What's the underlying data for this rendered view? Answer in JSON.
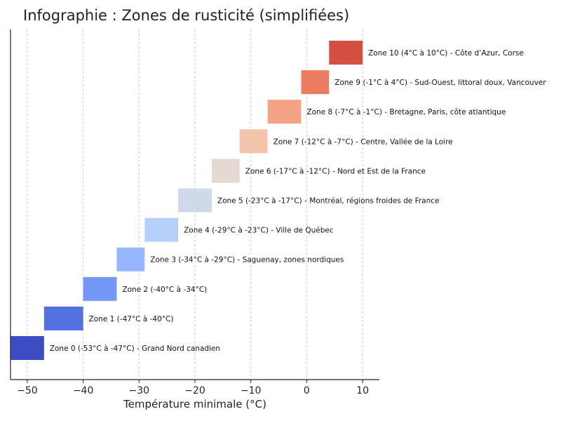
{
  "chart_data": {
    "type": "bar",
    "orientation": "horizontal-range",
    "title": "Infographie : Zones de rusticité (simplifiées)",
    "xlabel": "Température minimale (°C)",
    "ylabel": "",
    "xlim": [
      -53,
      13
    ],
    "xticks": [
      -50,
      -40,
      -30,
      -20,
      -10,
      0,
      10
    ],
    "xtick_labels": [
      "−50",
      "−40",
      "−30",
      "−20",
      "−10",
      "0",
      "10"
    ],
    "grid": "vertical dashed",
    "series": [
      {
        "label": "Zone 0 (-53°C à -47°C) - Grand Nord canadien",
        "start": -53,
        "end": -47,
        "color": "#3b4cc0"
      },
      {
        "label": "Zone 1 (-47°C à -40°C)",
        "start": -47,
        "end": -40,
        "color": "#5470de"
      },
      {
        "label": "Zone 2 (-40°C à -34°C)",
        "start": -40,
        "end": -34,
        "color": "#7597f6"
      },
      {
        "label": "Zone 3 (-34°C à -29°C) - Saguenay, zones nordiques",
        "start": -34,
        "end": -29,
        "color": "#96b7ff"
      },
      {
        "label": "Zone 4 (-29°C à -23°C) - Ville de Québec",
        "start": -29,
        "end": -23,
        "color": "#b7cff9"
      },
      {
        "label": "Zone 5 (-23°C à -17°C) - Montréal, régions froides de France",
        "start": -23,
        "end": -17,
        "color": "#d0d9e8"
      },
      {
        "label": "Zone 6 (-17°C à -12°C) - Nord et Est de la France",
        "start": -17,
        "end": -12,
        "color": "#e5d8d0"
      },
      {
        "label": "Zone 7 (-12°C à -7°C) - Centre, Vallée de la Loire",
        "start": -12,
        "end": -7,
        "color": "#f3c4ac"
      },
      {
        "label": "Zone 8 (-7°C à -1°C) - Bretagne, Paris, côte atlantique",
        "start": -7,
        "end": -1,
        "color": "#f5a487"
      },
      {
        "label": "Zone 9 (-1°C à 4°C) - Sud-Ouest, littoral doux, Vancouver",
        "start": -1,
        "end": 4,
        "color": "#eb7d63"
      },
      {
        "label": "Zone 10 (4°C à 10°C) - Côte d’Azur, Corse",
        "start": 4,
        "end": 10,
        "color": "#d44e41"
      }
    ]
  }
}
